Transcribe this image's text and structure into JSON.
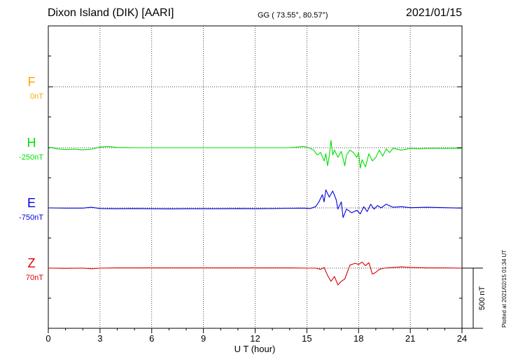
{
  "header": {
    "title": "Dixon Island (DIK)  [AARI]",
    "coord": "GG ( 73.55°,  80.57°)",
    "date": "2021/01/15"
  },
  "plotted_stamp": "Plotted at 2021/02/15 01:34 UT",
  "colors": {
    "F": "#ffa500",
    "H": "#00dd00",
    "E": "#0000dd",
    "Z": "#dd0000",
    "grid": "#000000"
  },
  "chart_data": {
    "type": "line",
    "xlabel": "U T (hour)",
    "xlim": [
      0,
      24
    ],
    "xticks": [
      "0",
      "3",
      "6",
      "9",
      "12",
      "15",
      "18",
      "21",
      "24"
    ],
    "scale_bar_label": "500 nT",
    "scale_bar_nT": 500,
    "grid": true,
    "series": [
      {
        "name": "F",
        "baseline_label": "0nT",
        "color": "#ffa500",
        "points": []
      },
      {
        "name": "H",
        "baseline_label": "-250nT",
        "color": "#00dd00",
        "points": [
          [
            0,
            -245
          ],
          [
            0.5,
            -260
          ],
          [
            1,
            -265
          ],
          [
            1.5,
            -262
          ],
          [
            2,
            -268
          ],
          [
            2.5,
            -262
          ],
          [
            3,
            -245
          ],
          [
            3.5,
            -240
          ],
          [
            4,
            -248
          ],
          [
            5,
            -250
          ],
          [
            6,
            -250
          ],
          [
            7,
            -250
          ],
          [
            8,
            -250
          ],
          [
            9,
            -250
          ],
          [
            10,
            -250
          ],
          [
            11,
            -250
          ],
          [
            12,
            -250
          ],
          [
            13,
            -250
          ],
          [
            14,
            -250
          ],
          [
            14.8,
            -240
          ],
          [
            15.1,
            -250
          ],
          [
            15.4,
            -270
          ],
          [
            15.6,
            -310
          ],
          [
            15.8,
            -290
          ],
          [
            16,
            -360
          ],
          [
            16.1,
            -300
          ],
          [
            16.2,
            -400
          ],
          [
            16.3,
            -320
          ],
          [
            16.4,
            -190
          ],
          [
            16.5,
            -310
          ],
          [
            16.6,
            -270
          ],
          [
            16.8,
            -330
          ],
          [
            17,
            -280
          ],
          [
            17.2,
            -400
          ],
          [
            17.3,
            -310
          ],
          [
            17.5,
            -270
          ],
          [
            17.7,
            -290
          ],
          [
            17.9,
            -330
          ],
          [
            18,
            -290
          ],
          [
            18.1,
            -420
          ],
          [
            18.2,
            -350
          ],
          [
            18.4,
            -410
          ],
          [
            18.6,
            -300
          ],
          [
            18.8,
            -360
          ],
          [
            19,
            -330
          ],
          [
            19.2,
            -270
          ],
          [
            19.4,
            -320
          ],
          [
            19.6,
            -260
          ],
          [
            19.8,
            -290
          ],
          [
            20,
            -255
          ],
          [
            20.5,
            -270
          ],
          [
            21,
            -255
          ],
          [
            21.5,
            -260
          ],
          [
            22,
            -255
          ],
          [
            23,
            -255
          ],
          [
            24,
            -255
          ]
        ]
      },
      {
        "name": "E",
        "baseline_label": "-750nT",
        "color": "#0000dd",
        "points": [
          [
            0,
            -750
          ],
          [
            1,
            -752
          ],
          [
            2,
            -752
          ],
          [
            2.5,
            -745
          ],
          [
            3,
            -755
          ],
          [
            4,
            -757
          ],
          [
            5,
            -755
          ],
          [
            6,
            -757
          ],
          [
            7,
            -758
          ],
          [
            8,
            -757
          ],
          [
            9,
            -757
          ],
          [
            10,
            -757
          ],
          [
            11,
            -755
          ],
          [
            12,
            -757
          ],
          [
            13,
            -755
          ],
          [
            14,
            -753
          ],
          [
            14.8,
            -752
          ],
          [
            15.2,
            -755
          ],
          [
            15.5,
            -740
          ],
          [
            15.7,
            -700
          ],
          [
            15.9,
            -640
          ],
          [
            16,
            -700
          ],
          [
            16.1,
            -600
          ],
          [
            16.3,
            -660
          ],
          [
            16.5,
            -610
          ],
          [
            16.7,
            -680
          ],
          [
            16.8,
            -760
          ],
          [
            17,
            -700
          ],
          [
            17.1,
            -830
          ],
          [
            17.3,
            -760
          ],
          [
            17.6,
            -790
          ],
          [
            17.9,
            -770
          ],
          [
            18.1,
            -800
          ],
          [
            18.3,
            -740
          ],
          [
            18.5,
            -780
          ],
          [
            18.7,
            -720
          ],
          [
            18.9,
            -760
          ],
          [
            19.1,
            -730
          ],
          [
            19.3,
            -750
          ],
          [
            19.6,
            -720
          ],
          [
            20,
            -745
          ],
          [
            20.5,
            -740
          ],
          [
            21,
            -748
          ],
          [
            22,
            -745
          ],
          [
            23,
            -748
          ],
          [
            24,
            -752
          ]
        ]
      },
      {
        "name": "Z",
        "baseline_label": "70nT",
        "color": "#dd0000",
        "points": [
          [
            0,
            70
          ],
          [
            1,
            68
          ],
          [
            2,
            70
          ],
          [
            2.5,
            65
          ],
          [
            3,
            70
          ],
          [
            4,
            72
          ],
          [
            5,
            72
          ],
          [
            6,
            72
          ],
          [
            7,
            72
          ],
          [
            8,
            72
          ],
          [
            9,
            72
          ],
          [
            10,
            72
          ],
          [
            11,
            72
          ],
          [
            12,
            72
          ],
          [
            13,
            72
          ],
          [
            14,
            72
          ],
          [
            15,
            70
          ],
          [
            15.5,
            70
          ],
          [
            15.8,
            60
          ],
          [
            16,
            75
          ],
          [
            16.2,
            10
          ],
          [
            16.4,
            -40
          ],
          [
            16.6,
            0
          ],
          [
            16.8,
            -70
          ],
          [
            17,
            -40
          ],
          [
            17.2,
            -20
          ],
          [
            17.5,
            95
          ],
          [
            17.8,
            110
          ],
          [
            18,
            100
          ],
          [
            18.2,
            120
          ],
          [
            18.4,
            90
          ],
          [
            18.6,
            115
          ],
          [
            18.8,
            20
          ],
          [
            19,
            35
          ],
          [
            19.2,
            60
          ],
          [
            19.5,
            70
          ],
          [
            20,
            75
          ],
          [
            20.5,
            80
          ],
          [
            21,
            75
          ],
          [
            22,
            72
          ],
          [
            23,
            72
          ],
          [
            24,
            70
          ]
        ]
      }
    ]
  }
}
